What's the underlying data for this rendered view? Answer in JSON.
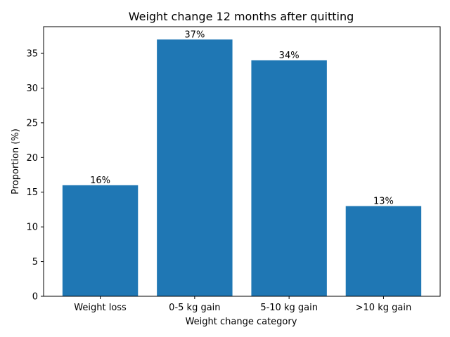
{
  "chart_data": {
    "type": "bar",
    "title": "Weight change 12 months after quitting",
    "xlabel": "Weight change category",
    "ylabel": "Proportion (%)",
    "categories": [
      "Weight loss",
      "0-5 kg gain",
      "5-10 kg gain",
      ">10 kg gain"
    ],
    "values": [
      16,
      37,
      34,
      13
    ],
    "data_labels": [
      "16%",
      "37%",
      "34%",
      "13%"
    ],
    "ylim": [
      0,
      38.85
    ],
    "yticks": [
      0,
      5,
      10,
      15,
      20,
      25,
      30,
      35
    ],
    "ytick_labels": [
      "0",
      "5",
      "10",
      "15",
      "20",
      "25",
      "30",
      "35"
    ],
    "bar_color": "#1f77b4",
    "grid": false,
    "legend": "none"
  }
}
